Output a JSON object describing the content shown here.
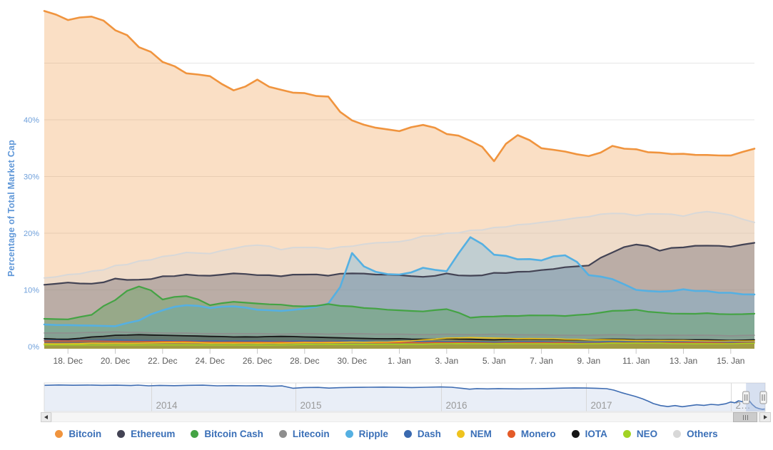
{
  "page": {
    "background": "#ffffff"
  },
  "chart": {
    "y_axis_title": "Percentage of Total Market Cap",
    "y_tick_labels": [
      "0%",
      "10%",
      "20%",
      "30%",
      "40%"
    ],
    "x_tick_labels": [
      "18. Dec",
      "20. Dec",
      "22. Dec",
      "24. Dec",
      "26. Dec",
      "28. Dec",
      "30. Dec",
      "1. Jan",
      "3. Jan",
      "5. Jan",
      "7. Jan",
      "9. Jan",
      "11. Jan",
      "13. Jan",
      "15. Jan"
    ],
    "colors": {
      "grid": "#e6e6e6",
      "axis_label_blue": "#6FA0DB",
      "x_label": "#5a5a5a",
      "tick": "#c8c8c8"
    }
  },
  "chart_data": {
    "type": "area",
    "title": "",
    "xlabel": "",
    "ylabel": "Percentage of Total Market Cap",
    "ylim": [
      0,
      62
    ],
    "yticks_percent": [
      0,
      10,
      20,
      30,
      40,
      50
    ],
    "grid": true,
    "legend_position": "bottom",
    "categories": [
      "17. Dec",
      "18. Dec",
      "19. Dec",
      "20. Dec",
      "21. Dec",
      "22. Dec",
      "23. Dec",
      "24. Dec",
      "25. Dec",
      "26. Dec",
      "27. Dec",
      "28. Dec",
      "29. Dec",
      "30. Dec",
      "31. Dec",
      "1. Jan",
      "2. Jan",
      "3. Jan",
      "4. Jan",
      "5. Jan",
      "6. Jan",
      "7. Jan",
      "8. Jan",
      "9. Jan",
      "10. Jan",
      "11. Jan",
      "12. Jan",
      "13. Jan",
      "14. Jan",
      "15. Jan",
      "16. Jan"
    ],
    "series": [
      {
        "name": "Bitcoin",
        "color": "#F0943E",
        "values": [
          59.2,
          57.6,
          58.2,
          55.8,
          52.8,
          50.2,
          48.2,
          47.7,
          45.2,
          47.1,
          45.3,
          44.7,
          44.1,
          39.9,
          38.6,
          38.0,
          39.1,
          37.5,
          36.3,
          32.7,
          37.3,
          35.0,
          34.4,
          33.6,
          35.4,
          34.8,
          34.2,
          34.0,
          33.8,
          33.7,
          34.9
        ]
      },
      {
        "name": "Ethereum",
        "color": "#434354",
        "values": [
          10.9,
          11.3,
          11.1,
          12.0,
          11.8,
          12.4,
          12.7,
          12.5,
          12.9,
          12.6,
          12.4,
          12.7,
          12.5,
          12.9,
          12.7,
          12.6,
          12.3,
          12.9,
          12.5,
          13.0,
          13.2,
          13.5,
          14.0,
          14.3,
          16.6,
          18.0,
          16.9,
          17.5,
          17.8,
          17.6,
          18.3
        ]
      },
      {
        "name": "Bitcoin Cash",
        "color": "#44A344",
        "values": [
          4.9,
          4.8,
          5.6,
          8.2,
          10.6,
          8.3,
          8.9,
          7.3,
          7.9,
          7.6,
          7.4,
          7.1,
          7.5,
          7.1,
          6.7,
          6.4,
          6.2,
          6.6,
          5.1,
          5.3,
          5.4,
          5.5,
          5.4,
          5.7,
          6.3,
          6.5,
          6.0,
          5.8,
          5.9,
          5.7,
          5.8
        ]
      },
      {
        "name": "Litecoin",
        "color": "#8E8E8E",
        "values": [
          2.4,
          2.4,
          2.5,
          2.6,
          2.5,
          2.4,
          2.4,
          2.3,
          2.3,
          2.3,
          2.2,
          2.3,
          2.2,
          2.3,
          2.2,
          2.2,
          2.1,
          2.2,
          2.1,
          2.2,
          2.1,
          2.1,
          2.0,
          2.0,
          2.1,
          2.0,
          2.0,
          2.0,
          2.0,
          1.9,
          2.0
        ]
      },
      {
        "name": "Ripple",
        "color": "#55B0E2",
        "values": [
          3.9,
          3.8,
          3.7,
          3.6,
          4.6,
          6.4,
          7.3,
          6.8,
          7.1,
          6.5,
          6.3,
          6.7,
          7.6,
          16.5,
          13.2,
          12.7,
          13.9,
          13.3,
          19.3,
          16.2,
          15.4,
          15.2,
          16.1,
          12.6,
          11.9,
          10.0,
          9.7,
          10.1,
          9.8,
          9.5,
          9.2
        ]
      },
      {
        "name": "Dash",
        "color": "#3A69AF",
        "values": [
          1.1,
          1.1,
          1.1,
          1.2,
          1.1,
          1.1,
          1.0,
          1.0,
          1.0,
          1.0,
          0.9,
          1.0,
          0.9,
          1.0,
          0.9,
          0.9,
          0.9,
          0.9,
          0.9,
          0.8,
          0.9,
          0.9,
          0.8,
          0.8,
          0.9,
          0.8,
          0.8,
          0.8,
          0.8,
          0.8,
          0.8
        ]
      },
      {
        "name": "NEM",
        "color": "#EFC31E",
        "values": [
          0.5,
          0.5,
          0.6,
          0.6,
          0.6,
          0.7,
          0.7,
          0.6,
          0.6,
          0.6,
          0.6,
          0.7,
          0.7,
          0.8,
          0.8,
          0.9,
          1.2,
          1.5,
          1.6,
          1.5,
          1.4,
          1.4,
          1.3,
          1.2,
          1.2,
          1.1,
          1.1,
          1.1,
          1.0,
          1.0,
          1.0
        ]
      },
      {
        "name": "Monero",
        "color": "#E45B28",
        "values": [
          1.0,
          1.0,
          1.0,
          0.9,
          0.9,
          0.9,
          0.9,
          0.8,
          0.8,
          0.8,
          0.8,
          0.8,
          0.8,
          0.8,
          0.7,
          0.7,
          0.7,
          0.7,
          0.7,
          0.6,
          0.7,
          0.7,
          0.7,
          0.6,
          0.7,
          0.7,
          0.7,
          0.7,
          0.7,
          0.6,
          0.7
        ]
      },
      {
        "name": "IOTA",
        "color": "#161616",
        "values": [
          1.4,
          1.3,
          1.7,
          2.0,
          2.1,
          2.0,
          1.9,
          1.8,
          1.7,
          1.7,
          1.8,
          1.7,
          1.6,
          1.5,
          1.4,
          1.4,
          1.3,
          1.4,
          1.3,
          1.2,
          1.3,
          1.3,
          1.2,
          1.2,
          1.3,
          1.2,
          1.2,
          1.2,
          1.2,
          1.1,
          1.2
        ]
      },
      {
        "name": "NEO",
        "color": "#A2D324",
        "values": [
          0.3,
          0.3,
          0.3,
          0.3,
          0.3,
          0.3,
          0.3,
          0.3,
          0.3,
          0.3,
          0.3,
          0.4,
          0.4,
          0.4,
          0.4,
          0.4,
          0.4,
          0.5,
          0.5,
          0.5,
          0.5,
          0.5,
          0.5,
          0.5,
          0.6,
          0.6,
          0.6,
          0.5,
          0.5,
          0.5,
          0.6
        ]
      },
      {
        "name": "Others",
        "color": "#D8D8D8",
        "values": [
          12.1,
          12.7,
          13.3,
          14.3,
          15.1,
          15.9,
          16.6,
          16.4,
          17.3,
          17.9,
          17.1,
          17.5,
          17.2,
          17.7,
          18.3,
          18.5,
          19.5,
          20.0,
          20.5,
          21.0,
          21.5,
          21.9,
          22.4,
          22.9,
          23.5,
          23.1,
          23.4,
          23.0,
          23.8,
          23.2,
          21.9
        ]
      }
    ]
  },
  "navigator": {
    "line_color": "#3E6CB2",
    "fill_color": "#E9EEF7",
    "selection_color": "#A7BBDD",
    "gridline_color": "#d8d8d8",
    "year_label_color": "#9a9a9a",
    "year_labels": [
      {
        "label": "2014",
        "f": 0.149
      },
      {
        "label": "2015",
        "f": 0.349
      },
      {
        "label": "2016",
        "f": 0.551
      },
      {
        "label": "2017",
        "f": 0.752
      },
      {
        "label": "2…",
        "f": 0.953
      }
    ],
    "selected_range": [
      0.9735,
      1.0
    ],
    "points": [
      [
        0,
        94
      ],
      [
        0.02,
        95
      ],
      [
        0.04,
        94.3
      ],
      [
        0.06,
        94.8
      ],
      [
        0.08,
        94
      ],
      [
        0.1,
        94.5
      ],
      [
        0.12,
        93.6
      ],
      [
        0.13,
        94.6
      ],
      [
        0.145,
        92.8
      ],
      [
        0.16,
        93.8
      ],
      [
        0.18,
        93.2
      ],
      [
        0.2,
        94
      ],
      [
        0.22,
        94.4
      ],
      [
        0.24,
        92.8
      ],
      [
        0.26,
        93.4
      ],
      [
        0.28,
        92.8
      ],
      [
        0.3,
        93.2
      ],
      [
        0.315,
        91.8
      ],
      [
        0.33,
        92.6
      ],
      [
        0.345,
        86.6
      ],
      [
        0.36,
        88.4
      ],
      [
        0.38,
        88.8
      ],
      [
        0.395,
        87
      ],
      [
        0.41,
        88.2
      ],
      [
        0.43,
        88.8
      ],
      [
        0.45,
        89.2
      ],
      [
        0.47,
        89.6
      ],
      [
        0.49,
        89
      ],
      [
        0.51,
        88.4
      ],
      [
        0.53,
        89.2
      ],
      [
        0.55,
        90
      ],
      [
        0.565,
        89.2
      ],
      [
        0.58,
        86.4
      ],
      [
        0.59,
        84.4
      ],
      [
        0.6,
        85.8
      ],
      [
        0.615,
        85
      ],
      [
        0.63,
        85.8
      ],
      [
        0.645,
        85.2
      ],
      [
        0.66,
        85
      ],
      [
        0.68,
        85.6
      ],
      [
        0.7,
        86.2
      ],
      [
        0.72,
        87
      ],
      [
        0.735,
        87.6
      ],
      [
        0.75,
        87.2
      ],
      [
        0.765,
        86.6
      ],
      [
        0.78,
        85.6
      ],
      [
        0.79,
        82
      ],
      [
        0.8,
        76
      ],
      [
        0.81,
        71
      ],
      [
        0.82,
        66
      ],
      [
        0.83,
        60
      ],
      [
        0.838,
        54
      ],
      [
        0.845,
        48
      ],
      [
        0.855,
        43
      ],
      [
        0.865,
        40.5
      ],
      [
        0.875,
        43
      ],
      [
        0.885,
        40
      ],
      [
        0.895,
        42.5
      ],
      [
        0.905,
        45
      ],
      [
        0.915,
        43.5
      ],
      [
        0.925,
        46
      ],
      [
        0.935,
        44.5
      ],
      [
        0.945,
        47.5
      ],
      [
        0.952,
        52
      ],
      [
        0.958,
        50
      ],
      [
        0.963,
        55
      ],
      [
        0.968,
        53
      ],
      [
        0.973,
        57
      ],
      [
        0.978,
        55
      ],
      [
        0.982,
        46
      ],
      [
        0.987,
        38
      ],
      [
        0.992,
        35
      ],
      [
        0.996,
        33.5
      ],
      [
        1,
        34.5
      ]
    ]
  },
  "legend": {
    "text_color": "#3A6FB7",
    "items": [
      {
        "label": "Bitcoin",
        "color": "#F0943E"
      },
      {
        "label": "Ethereum",
        "color": "#434354"
      },
      {
        "label": "Bitcoin Cash",
        "color": "#44A344"
      },
      {
        "label": "Litecoin",
        "color": "#8E8E8E"
      },
      {
        "label": "Ripple",
        "color": "#55B0E2"
      },
      {
        "label": "Dash",
        "color": "#3A69AF"
      },
      {
        "label": "NEM",
        "color": "#EFC31E"
      },
      {
        "label": "Monero",
        "color": "#E45B28"
      },
      {
        "label": "IOTA",
        "color": "#161616"
      },
      {
        "label": "NEO",
        "color": "#A2D324"
      },
      {
        "label": "Others",
        "color": "#D8D8D8"
      }
    ]
  }
}
